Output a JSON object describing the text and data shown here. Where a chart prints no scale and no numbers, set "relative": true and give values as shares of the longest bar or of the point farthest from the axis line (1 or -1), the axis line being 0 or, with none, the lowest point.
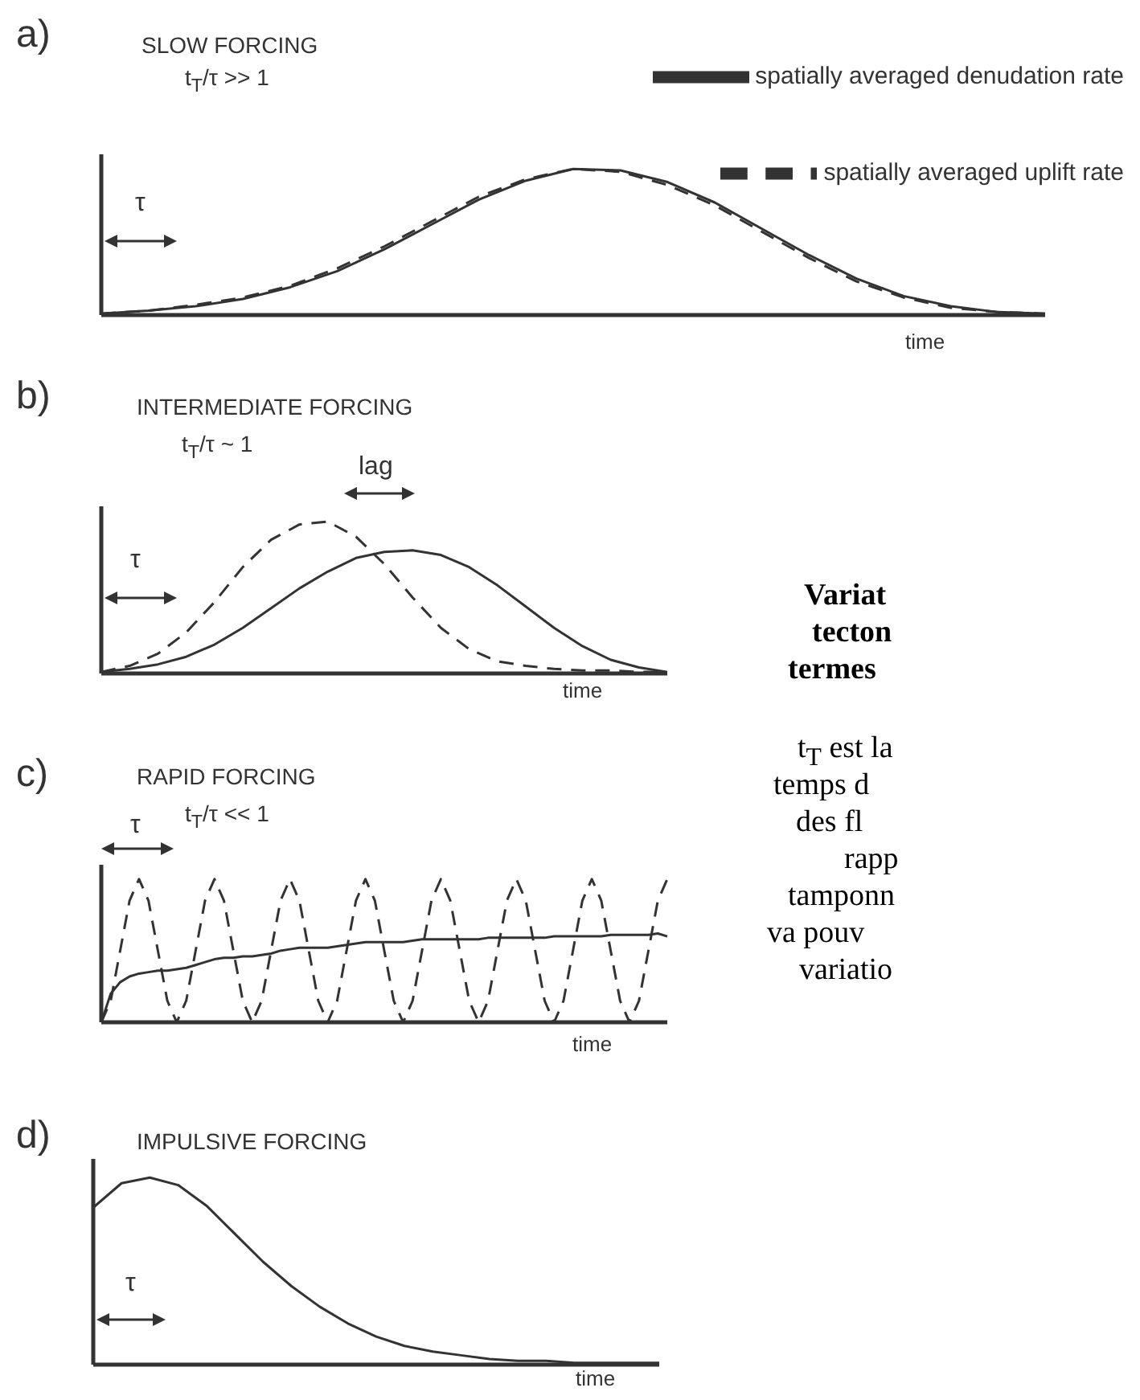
{
  "chart_data": [
    {
      "type": "line",
      "relative": true,
      "title": "SLOW FORCING",
      "subtitle": "t$_{T}$/τ >> 1",
      "xlabel": "time",
      "legend": "top right",
      "annotations": [
        "a)",
        "τ"
      ],
      "categories": [
        null,
        null,
        null,
        null,
        null,
        null,
        null,
        null,
        null,
        null,
        null,
        null,
        null,
        null,
        null,
        null,
        null,
        null,
        null,
        null,
        null
      ],
      "series": [
        {
          "name": "spatially averaged denudation rate",
          "color": "#333333",
          "line_style": "solid",
          "values": [
            0.01,
            0.03,
            0.06,
            0.11,
            0.19,
            0.3,
            0.45,
            0.62,
            0.79,
            0.92,
            1,
            0.99,
            0.91,
            0.77,
            0.59,
            0.41,
            0.25,
            0.13,
            0.06,
            0.02,
            0.01
          ]
        },
        {
          "name": "spatially averaged uplift rate",
          "color": "#333333",
          "line_style": "dashed",
          "values": [
            0.01,
            0.03,
            0.07,
            0.12,
            0.2,
            0.32,
            0.47,
            0.64,
            0.81,
            0.93,
            1,
            0.98,
            0.89,
            0.75,
            0.57,
            0.39,
            0.23,
            0.12,
            0.05,
            0.02,
            0.01
          ]
        }
      ]
    },
    {
      "type": "line",
      "relative": true,
      "title": "INTERMEDIATE FORCING",
      "subtitle": "t$_{T}$/τ ~ 1",
      "xlabel": "time",
      "annotations": [
        "b)",
        "τ",
        "lag"
      ],
      "categories": [
        null,
        null,
        null,
        null,
        null,
        null,
        null,
        null,
        null,
        null,
        null,
        null,
        null,
        null,
        null,
        null,
        null,
        null,
        null,
        null,
        null
      ],
      "series": [
        {
          "color": "#333333",
          "line_style": "solid",
          "values": [
            0.01,
            0.03,
            0.06,
            0.11,
            0.19,
            0.3,
            0.43,
            0.56,
            0.67,
            0.76,
            0.8,
            0.81,
            0.78,
            0.7,
            0.58,
            0.44,
            0.3,
            0.18,
            0.09,
            0.04,
            0.01
          ]
        },
        {
          "color": "#333333",
          "line_style": "dashed",
          "values": [
            0.01,
            0.05,
            0.13,
            0.27,
            0.47,
            0.7,
            0.88,
            0.98,
            1,
            0.9,
            0.72,
            0.5,
            0.3,
            0.16,
            0.08,
            0.05,
            0.03,
            0.02,
            0.02,
            0.01,
            0.01
          ]
        }
      ]
    },
    {
      "type": "line",
      "relative": true,
      "title": "RAPID FORCING",
      "subtitle": "t$_{T}$/τ << 1",
      "xlabel": "time",
      "annotations": [
        "c)",
        "τ"
      ],
      "categories": [
        null,
        null,
        null,
        null,
        null,
        null,
        null,
        null,
        null,
        null,
        null,
        null,
        null,
        null,
        null,
        null,
        null,
        null,
        null,
        null,
        null,
        null,
        null,
        null,
        null,
        null,
        null,
        null,
        null,
        null,
        null,
        null,
        null,
        null,
        null,
        null,
        null,
        null,
        null,
        null,
        null,
        null,
        null,
        null,
        null,
        null,
        null,
        null,
        null,
        null,
        null,
        null,
        null,
        null,
        null,
        null,
        null,
        null,
        null,
        null,
        null
      ],
      "series": [
        {
          "color": "#333333",
          "line_style": "solid",
          "values": [
            0,
            0.2,
            0.28,
            0.32,
            0.34,
            0.35,
            0.36,
            0.36,
            0.37,
            0.38,
            0.4,
            0.42,
            0.44,
            0.45,
            0.45,
            0.46,
            0.46,
            0.47,
            0.48,
            0.5,
            0.51,
            0.52,
            0.52,
            0.52,
            0.52,
            0.53,
            0.54,
            0.55,
            0.56,
            0.56,
            0.56,
            0.56,
            0.56,
            0.57,
            0.58,
            0.58,
            0.58,
            0.58,
            0.58,
            0.58,
            0.58,
            0.59,
            0.59,
            0.59,
            0.59,
            0.59,
            0.59,
            0.59,
            0.6,
            0.6,
            0.6,
            0.6,
            0.6,
            0.6,
            0.61,
            0.61,
            0.61,
            0.61,
            0.61,
            0.62,
            0.6
          ]
        },
        {
          "color": "#333333",
          "line_style": "dashed",
          "values": [
            0,
            0.15,
            0.5,
            0.85,
            1,
            0.85,
            0.5,
            0.15,
            0,
            0.15,
            0.5,
            0.85,
            1,
            0.85,
            0.5,
            0.15,
            0,
            0.15,
            0.5,
            0.85,
            1,
            0.85,
            0.5,
            0.15,
            0,
            0.15,
            0.5,
            0.85,
            1,
            0.85,
            0.5,
            0.15,
            0,
            0.15,
            0.5,
            0.85,
            1,
            0.85,
            0.5,
            0.15,
            0,
            0.15,
            0.5,
            0.85,
            1,
            0.85,
            0.5,
            0.15,
            0,
            0.15,
            0.5,
            0.85,
            1,
            0.85,
            0.5,
            0.15,
            0,
            0.15,
            0.5,
            0.85,
            1
          ]
        }
      ]
    },
    {
      "type": "line",
      "relative": true,
      "title": "IMPULSIVE FORCING",
      "xlabel": "time",
      "annotations": [
        "d)",
        "τ"
      ],
      "categories": [
        null,
        null,
        null,
        null,
        null,
        null,
        null,
        null,
        null,
        null,
        null,
        null,
        null,
        null,
        null,
        null,
        null,
        null,
        null,
        null,
        null
      ],
      "series": [
        {
          "color": "#333333",
          "line_style": "solid",
          "values": [
            0.84,
            0.97,
            1,
            0.96,
            0.85,
            0.7,
            0.55,
            0.42,
            0.31,
            0.22,
            0.15,
            0.1,
            0.07,
            0.05,
            0.03,
            0.02,
            0.02,
            0.01,
            0.01,
            0.01,
            0.01
          ]
        }
      ]
    },
    {
      "type": "other",
      "title": "Variat\ntecton\ntermes",
      "annotations": [
        "t$_{T}$ est la",
        "temps d",
        "des fl",
        "rapp",
        "tamponn",
        "va pouv",
        "variatio"
      ]
    }
  ]
}
